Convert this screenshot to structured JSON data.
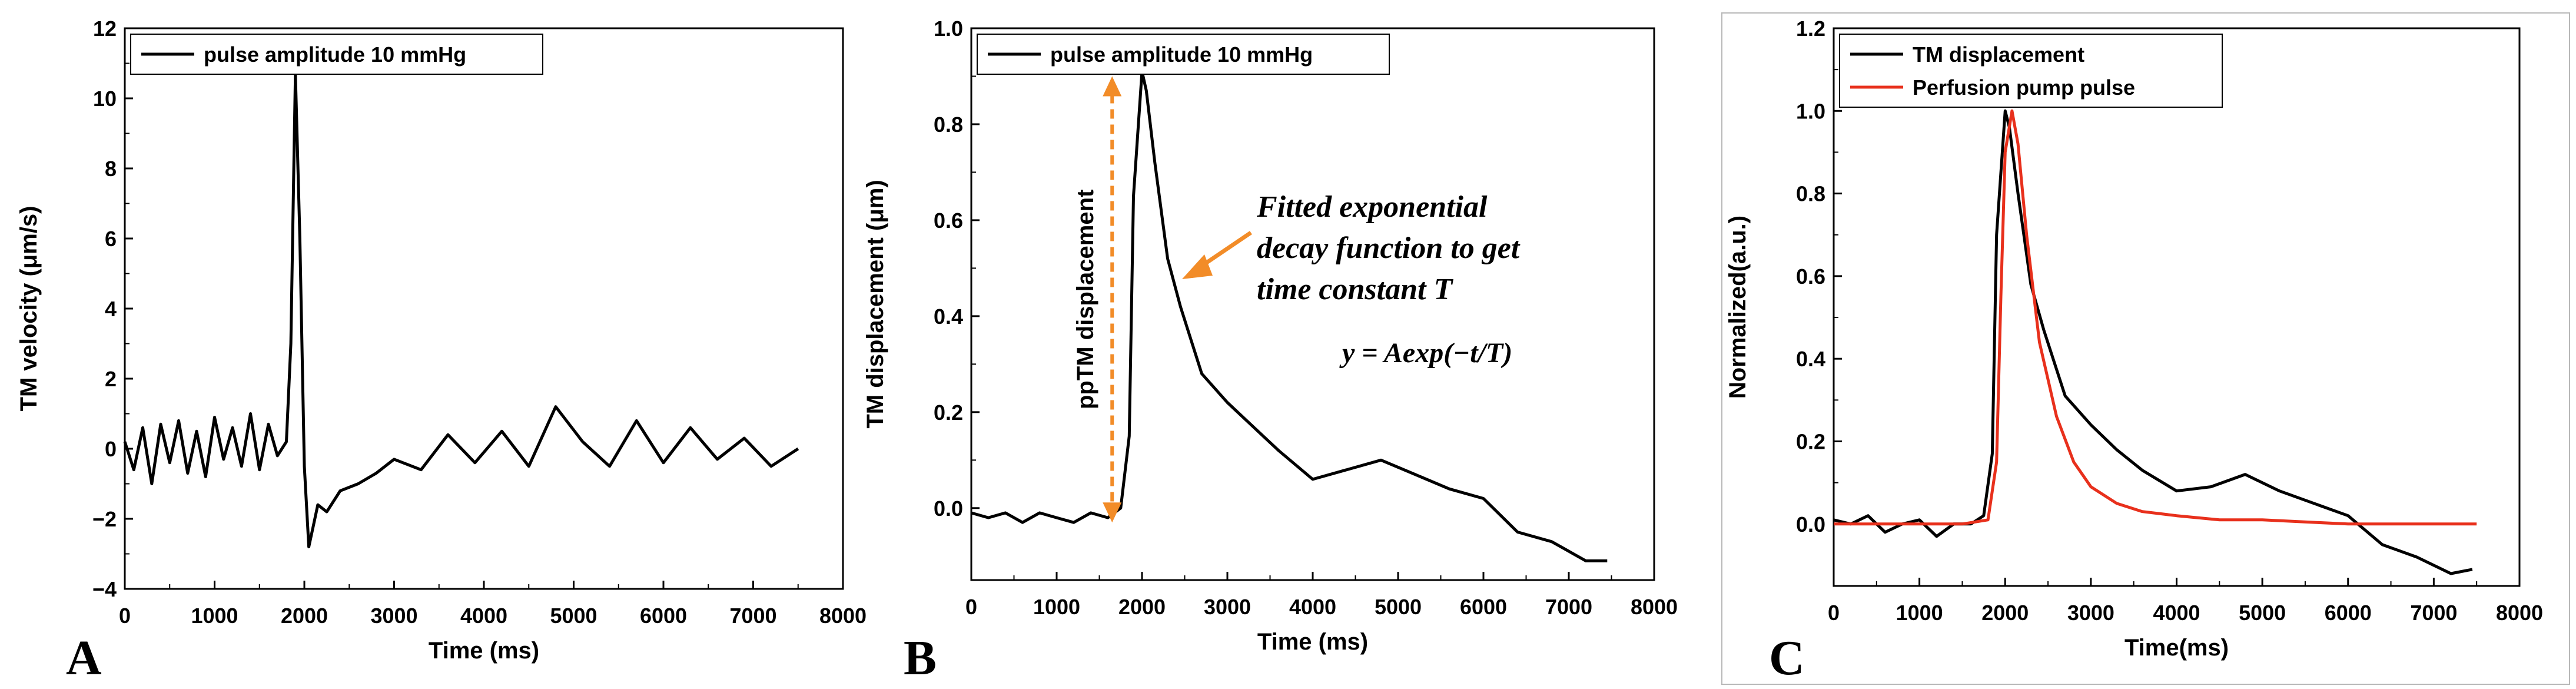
{
  "chart_data": [
    {
      "id": "A",
      "type": "line",
      "panel_label": "A",
      "xlabel": "Time (ms)",
      "ylabel": "TM velocity (μm/s)",
      "xlim": [
        0,
        8000
      ],
      "ylim": [
        -4,
        12
      ],
      "xticks": [
        0,
        1000,
        2000,
        3000,
        4000,
        5000,
        6000,
        7000,
        8000
      ],
      "yticks": [
        -4,
        -2,
        0,
        2,
        4,
        6,
        8,
        10,
        12
      ],
      "legend": [
        "pulse amplitude 10 mmHg"
      ],
      "legend_position": "top-left",
      "series": [
        {
          "name": "pulse amplitude 10 mmHg",
          "color": "#000000",
          "x": [
            0,
            100,
            200,
            300,
            400,
            500,
            600,
            700,
            800,
            900,
            1000,
            1100,
            1200,
            1300,
            1400,
            1500,
            1600,
            1700,
            1800,
            1850,
            1900,
            1950,
            2000,
            2050,
            2100,
            2150,
            2250,
            2400,
            2600,
            2800,
            3000,
            3300,
            3600,
            3900,
            4200,
            4500,
            4800,
            5100,
            5400,
            5700,
            6000,
            6300,
            6600,
            6900,
            7200,
            7500
          ],
          "y": [
            0.2,
            -0.6,
            0.6,
            -1.0,
            0.7,
            -0.4,
            0.8,
            -0.7,
            0.5,
            -0.8,
            0.9,
            -0.3,
            0.6,
            -0.5,
            1.0,
            -0.6,
            0.7,
            -0.2,
            0.2,
            3.0,
            10.7,
            6.0,
            -0.5,
            -2.8,
            -2.2,
            -1.6,
            -1.8,
            -1.2,
            -1.0,
            -0.7,
            -0.3,
            -0.6,
            0.4,
            -0.4,
            0.5,
            -0.5,
            1.2,
            0.2,
            -0.5,
            0.8,
            -0.4,
            0.6,
            -0.3,
            0.3,
            -0.5,
            0.0
          ]
        }
      ]
    },
    {
      "id": "B",
      "type": "line",
      "panel_label": "B",
      "xlabel": "Time (ms)",
      "ylabel": "TM displacement (μm)",
      "xlim": [
        0,
        8000
      ],
      "ylim": [
        -0.15,
        1.0
      ],
      "xticks": [
        0,
        1000,
        2000,
        3000,
        4000,
        5000,
        6000,
        7000,
        8000
      ],
      "yticks": [
        0.0,
        0.2,
        0.4,
        0.6,
        0.8,
        1.0
      ],
      "legend": [
        "pulse amplitude 10 mmHg"
      ],
      "legend_position": "top-left",
      "series": [
        {
          "name": "pulse amplitude 10 mmHg",
          "color": "#000000",
          "x": [
            0,
            200,
            400,
            600,
            800,
            1000,
            1200,
            1400,
            1600,
            1750,
            1850,
            1900,
            2000,
            2050,
            2150,
            2300,
            2450,
            2700,
            3000,
            3300,
            3600,
            4000,
            4400,
            4800,
            5200,
            5600,
            6000,
            6400,
            6800,
            7200,
            7450
          ],
          "y": [
            -0.01,
            -0.02,
            -0.01,
            -0.03,
            -0.01,
            -0.02,
            -0.03,
            -0.01,
            -0.02,
            0.0,
            0.15,
            0.65,
            0.91,
            0.87,
            0.72,
            0.52,
            0.42,
            0.28,
            0.22,
            0.17,
            0.12,
            0.06,
            0.08,
            0.1,
            0.07,
            0.04,
            0.02,
            -0.05,
            -0.07,
            -0.11,
            -0.11
          ]
        }
      ],
      "annotations": {
        "arrow_label": "ppTM displacement",
        "fit_text_lines": [
          "Fitted exponential",
          "decay function to get",
          "time constant T"
        ],
        "equation": "y = Aexp(−t/T)"
      },
      "colors": {
        "annotation": "#f28c28"
      }
    },
    {
      "id": "C",
      "type": "line",
      "panel_label": "C",
      "xlabel": "Time(ms)",
      "ylabel": "Normalized(a.u.)",
      "xlim": [
        0,
        8000
      ],
      "ylim": [
        -0.15,
        1.2
      ],
      "xticks": [
        0,
        1000,
        2000,
        3000,
        4000,
        5000,
        6000,
        7000,
        8000
      ],
      "yticks": [
        0.0,
        0.2,
        0.4,
        0.6,
        0.8,
        1.0,
        1.2
      ],
      "legend": [
        "TM displacement",
        "Perfusion pump pulse"
      ],
      "legend_position": "top-left",
      "series": [
        {
          "name": "TM displacement",
          "color": "#000000",
          "x": [
            0,
            200,
            400,
            600,
            800,
            1000,
            1200,
            1400,
            1600,
            1750,
            1850,
            1900,
            2000,
            2050,
            2150,
            2300,
            2450,
            2700,
            3000,
            3300,
            3600,
            4000,
            4400,
            4800,
            5200,
            5600,
            6000,
            6400,
            6800,
            7200,
            7450
          ],
          "y": [
            0.01,
            0.0,
            0.02,
            -0.02,
            0.0,
            0.01,
            -0.03,
            0.0,
            0.0,
            0.02,
            0.17,
            0.7,
            1.0,
            0.96,
            0.8,
            0.58,
            0.47,
            0.31,
            0.24,
            0.18,
            0.13,
            0.08,
            0.09,
            0.12,
            0.08,
            0.05,
            0.02,
            -0.05,
            -0.08,
            -0.12,
            -0.11
          ]
        },
        {
          "name": "Perfusion pump pulse",
          "color": "#e8301c",
          "x": [
            0,
            500,
            1000,
            1500,
            1800,
            1900,
            1950,
            2000,
            2080,
            2150,
            2250,
            2400,
            2600,
            2800,
            3000,
            3300,
            3600,
            4000,
            4500,
            5000,
            6000,
            7000,
            7500
          ],
          "y": [
            0.0,
            0.0,
            0.0,
            0.0,
            0.01,
            0.15,
            0.55,
            0.9,
            1.0,
            0.92,
            0.7,
            0.44,
            0.26,
            0.15,
            0.09,
            0.05,
            0.03,
            0.02,
            0.01,
            0.01,
            0.0,
            0.0,
            0.0
          ]
        }
      ]
    }
  ]
}
